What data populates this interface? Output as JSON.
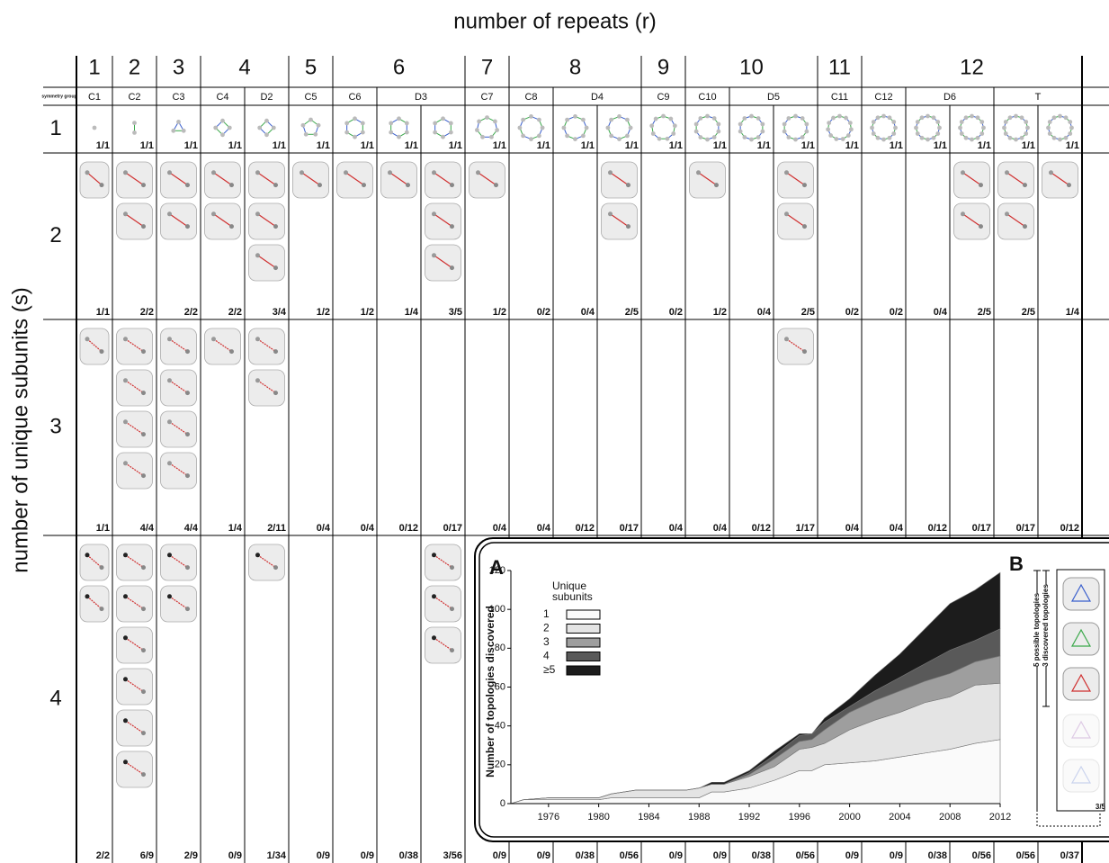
{
  "table": {
    "column_header": "number of repeats (r)",
    "row_header": "number of unique subunits (s)",
    "symmetry_group_label": "symmetry group",
    "rows": [
      "1",
      "2",
      "3",
      "4"
    ],
    "repeats": [
      {
        "r": "1",
        "groups": [
          {
            "name": "C1",
            "columns": [
              [
                "1/1",
                "1/1",
                "1/1",
                "2/2"
              ]
            ]
          }
        ]
      },
      {
        "r": "2",
        "groups": [
          {
            "name": "C2",
            "columns": [
              [
                "1/1",
                "2/2",
                "4/4",
                "6/9"
              ]
            ]
          }
        ]
      },
      {
        "r": "3",
        "groups": [
          {
            "name": "C3",
            "columns": [
              [
                "1/1",
                "2/2",
                "4/4",
                "2/9"
              ]
            ]
          }
        ]
      },
      {
        "r": "4",
        "groups": [
          {
            "name": "C4",
            "columns": [
              [
                "1/1",
                "2/2",
                "1/4",
                "0/9"
              ]
            ]
          },
          {
            "name": "D2",
            "columns": [
              [
                "1/1",
                "3/4",
                "2/11",
                "1/34"
              ]
            ]
          }
        ]
      },
      {
        "r": "5",
        "groups": [
          {
            "name": "C5",
            "columns": [
              [
                "1/1",
                "1/2",
                "0/4",
                "0/9"
              ]
            ]
          }
        ]
      },
      {
        "r": "6",
        "groups": [
          {
            "name": "C6",
            "columns": [
              [
                "1/1",
                "1/2",
                "0/4",
                "0/9"
              ]
            ]
          },
          {
            "name": "D3",
            "columns": [
              [
                "1/1",
                "1/4",
                "0/12",
                "0/38"
              ],
              [
                "1/1",
                "3/5",
                "0/17",
                "3/56"
              ]
            ]
          }
        ]
      },
      {
        "r": "7",
        "groups": [
          {
            "name": "C7",
            "columns": [
              [
                "1/1",
                "1/2",
                "0/4",
                "0/9"
              ]
            ]
          }
        ]
      },
      {
        "r": "8",
        "groups": [
          {
            "name": "C8",
            "columns": [
              [
                "1/1",
                "0/2",
                "0/4",
                "0/9"
              ]
            ]
          },
          {
            "name": "D4",
            "columns": [
              [
                "1/1",
                "0/4",
                "0/12",
                "0/38"
              ],
              [
                "1/1",
                "2/5",
                "0/17",
                "0/56"
              ]
            ]
          }
        ]
      },
      {
        "r": "9",
        "groups": [
          {
            "name": "C9",
            "columns": [
              [
                "1/1",
                "0/2",
                "0/4",
                "0/9"
              ]
            ]
          }
        ]
      },
      {
        "r": "10",
        "groups": [
          {
            "name": "C10",
            "columns": [
              [
                "1/1",
                "1/2",
                "0/4",
                "0/9"
              ]
            ]
          },
          {
            "name": "D5",
            "columns": [
              [
                "1/1",
                "0/4",
                "0/12",
                "0/38"
              ],
              [
                "1/1",
                "2/5",
                "1/17",
                "0/56"
              ]
            ]
          }
        ]
      },
      {
        "r": "11",
        "groups": [
          {
            "name": "C11",
            "columns": [
              [
                "1/1",
                "0/2",
                "0/4",
                "0/9"
              ]
            ]
          }
        ]
      },
      {
        "r": "12",
        "groups": [
          {
            "name": "C12",
            "columns": [
              [
                "1/1",
                "0/2",
                "0/4",
                "0/9"
              ]
            ]
          },
          {
            "name": "D6",
            "columns": [
              [
                "1/1",
                "0/4",
                "0/12",
                "0/38"
              ],
              [
                "1/1",
                "2/5",
                "0/17",
                "0/56"
              ]
            ]
          },
          {
            "name": "T",
            "columns": [
              [
                "1/1",
                "2/5",
                "0/17",
                "0/56"
              ],
              [
                "1/1",
                "1/4",
                "0/12",
                "0/37"
              ]
            ]
          }
        ]
      }
    ]
  },
  "chart_data": {
    "type": "area",
    "panel_label": "A",
    "ylabel": "Number of topologies discovered",
    "legend_title": "Unique subunits",
    "x": [
      1973,
      1974,
      1976,
      1980,
      1981,
      1983,
      1987,
      1988,
      1989,
      1990,
      1992,
      1994,
      1996,
      1997,
      1998,
      2000,
      2002,
      2004,
      2006,
      2008,
      2010,
      2012
    ],
    "xlim": [
      1973,
      2012
    ],
    "xticks": [
      1976,
      1980,
      1984,
      1988,
      1992,
      1996,
      2000,
      2004,
      2008,
      2012
    ],
    "ylim": [
      0,
      120
    ],
    "yticks": [
      0,
      20,
      40,
      60,
      80,
      100,
      120
    ],
    "series": [
      {
        "name": "1",
        "color": "#fafafa",
        "values": [
          0,
          2,
          2,
          2,
          3,
          3,
          3,
          3,
          6,
          6,
          8,
          12,
          17,
          17,
          20,
          21,
          22,
          24,
          26,
          28,
          31,
          33
        ]
      },
      {
        "name": "2",
        "color": "#e4e4e4",
        "values": [
          0,
          0,
          1,
          1,
          2,
          4,
          4,
          5,
          4,
          4,
          6,
          7,
          11,
          12,
          11,
          17,
          21,
          23,
          26,
          27,
          30,
          29
        ]
      },
      {
        "name": "3",
        "color": "#9e9e9e",
        "values": [
          0,
          0,
          0,
          0,
          0,
          0,
          0,
          0,
          0,
          0,
          1,
          4,
          4,
          4,
          7,
          9,
          10,
          11,
          11,
          12,
          12,
          14
        ]
      },
      {
        "name": "4",
        "color": "#595959",
        "values": [
          0,
          0,
          0,
          0,
          0,
          0,
          0,
          0,
          0,
          0,
          1,
          2,
          3,
          3,
          4,
          3,
          5,
          7,
          9,
          12,
          11,
          14
        ]
      },
      {
        "name": "≥5",
        "color": "#1c1c1c",
        "values": [
          0,
          0,
          0,
          0,
          0,
          0,
          0,
          0,
          1,
          1,
          1,
          2,
          1,
          0,
          2,
          4,
          8,
          12,
          18,
          24,
          26,
          29
        ]
      }
    ]
  },
  "panel_b": {
    "label": "B",
    "possible": "5 possible topologies",
    "discovered": "3 discovered topologies",
    "fraction": "3/5"
  }
}
